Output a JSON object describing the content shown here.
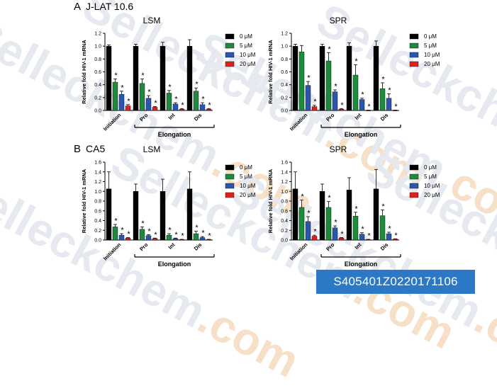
{
  "watermark": {
    "text": "Selleckchem",
    "suffix": ".com"
  },
  "image_id_label": "S405401Z0220171106",
  "panels": [
    {
      "letter": "A",
      "cell_line": "J-LAT 10.6"
    },
    {
      "letter": "B",
      "cell_line": "CA5"
    }
  ],
  "colors": {
    "0 μM": "#000000",
    "5 μM": "#1f8a3e",
    "10 μM": "#2a56b0",
    "20 μM": "#e02020"
  },
  "chart_data": [
    {
      "type": "bar",
      "panel": "A",
      "title": "LSM",
      "ylabel": "Relative fold HIV-1 mRNA",
      "ylim": [
        0,
        1.2
      ],
      "yticks": [
        "0.0",
        "0.2",
        "0.4",
        "0.6",
        "0.8",
        "1.0",
        "1.2"
      ],
      "categories": [
        "Initiation",
        "Pro",
        "Int",
        "Dis"
      ],
      "group_label": "Elongation",
      "legend": [
        "0 μM",
        "5 μM",
        "10 μM",
        "20 μM"
      ],
      "series": [
        {
          "name": "0 μM",
          "values": [
            1.0,
            1.0,
            1.0,
            1.0
          ],
          "errors": [
            0.02,
            0.03,
            0.06,
            0.1
          ],
          "sig": [
            false,
            false,
            false,
            false
          ]
        },
        {
          "name": "5 μM",
          "values": [
            0.44,
            0.42,
            0.27,
            0.3
          ],
          "errors": [
            0.05,
            0.07,
            0.04,
            0.05
          ],
          "sig": [
            true,
            true,
            true,
            true
          ]
        },
        {
          "name": "10 μM",
          "values": [
            0.25,
            0.19,
            0.1,
            0.09
          ],
          "errors": [
            0.05,
            0.04,
            0.02,
            0.03
          ],
          "sig": [
            true,
            true,
            true,
            true
          ]
        },
        {
          "name": "20 μM",
          "values": [
            0.07,
            0.05,
            0.02,
            0.02
          ],
          "errors": [
            0.02,
            0.01,
            0.01,
            0.01
          ],
          "sig": [
            true,
            true,
            true,
            true
          ]
        }
      ]
    },
    {
      "type": "bar",
      "panel": "A",
      "title": "SPR",
      "ylabel": "Relative fold HIV-1 mRNA",
      "ylim": [
        0,
        1.2
      ],
      "yticks": [
        "0.0",
        "0.2",
        "0.4",
        "0.6",
        "0.8",
        "1.0",
        "1.2"
      ],
      "categories": [
        "Initiation",
        "Pro",
        "Int",
        "Dis"
      ],
      "group_label": "Elongation",
      "legend": [
        "0 μM",
        "5 μM",
        "10 μM",
        "20 μM"
      ],
      "series": [
        {
          "name": "0 μM",
          "values": [
            1.0,
            1.0,
            1.0,
            1.0
          ],
          "errors": [
            0.03,
            0.03,
            0.05,
            0.08
          ],
          "sig": [
            false,
            false,
            false,
            false
          ]
        },
        {
          "name": "5 μM",
          "values": [
            0.91,
            0.77,
            0.55,
            0.34
          ],
          "errors": [
            0.1,
            0.13,
            0.16,
            0.09
          ],
          "sig": [
            false,
            true,
            true,
            true
          ]
        },
        {
          "name": "10 μM",
          "values": [
            0.39,
            0.29,
            0.17,
            0.19
          ],
          "errors": [
            0.06,
            0.03,
            0.02,
            0.07
          ],
          "sig": [
            true,
            true,
            true,
            true
          ]
        },
        {
          "name": "20 μM",
          "values": [
            0.06,
            0.02,
            0.0,
            0.0
          ],
          "errors": [
            0.02,
            0.01,
            0.005,
            0.005
          ],
          "sig": [
            true,
            true,
            true,
            true
          ]
        }
      ]
    },
    {
      "type": "bar",
      "panel": "B",
      "title": "LSM",
      "ylabel": "Relative fold HIV-1 mRNA",
      "ylim": [
        0,
        1.6
      ],
      "yticks": [
        "0.0",
        "0.2",
        "0.4",
        "0.6",
        "0.8",
        "1.0",
        "1.2",
        "1.4",
        "1.6"
      ],
      "categories": [
        "Initiation",
        "Pro",
        "Int",
        "Dis"
      ],
      "group_label": "Elongation",
      "legend": [
        "0 μM",
        "5 μM",
        "10 μM",
        "20 μM"
      ],
      "series": [
        {
          "name": "0 μM",
          "values": [
            1.05,
            1.0,
            1.0,
            1.05
          ],
          "errors": [
            0.35,
            0.15,
            0.25,
            0.35
          ],
          "sig": [
            false,
            false,
            false,
            false
          ]
        },
        {
          "name": "5 μM",
          "values": [
            0.27,
            0.22,
            0.1,
            0.13
          ],
          "errors": [
            0.05,
            0.05,
            0.03,
            0.05
          ],
          "sig": [
            true,
            true,
            true,
            true
          ]
        },
        {
          "name": "10 μM",
          "values": [
            0.1,
            0.09,
            0.03,
            0.05
          ],
          "errors": [
            0.03,
            0.02,
            0.01,
            0.02
          ],
          "sig": [
            true,
            true,
            true,
            true
          ]
        },
        {
          "name": "20 μM",
          "values": [
            0.04,
            0.03,
            0.01,
            0.01
          ],
          "errors": [
            0.01,
            0.01,
            0.005,
            0.005
          ],
          "sig": [
            true,
            true,
            true,
            true
          ]
        }
      ]
    },
    {
      "type": "bar",
      "panel": "B",
      "title": "SPR",
      "ylabel": "Relative fold HIV-1 mRNA",
      "ylim": [
        0,
        1.6
      ],
      "yticks": [
        "0.0",
        "0.2",
        "0.4",
        "0.6",
        "0.8",
        "1.0",
        "1.2",
        "1.4",
        "1.6"
      ],
      "categories": [
        "Initiation",
        "Pro",
        "Int",
        "Dis"
      ],
      "group_label": "Elongation",
      "legend": [
        "0 μM",
        "5 μM",
        "10 μM",
        "20 μM"
      ],
      "series": [
        {
          "name": "0 μM",
          "values": [
            1.05,
            1.0,
            1.03,
            1.05
          ],
          "errors": [
            0.35,
            0.15,
            0.25,
            0.4
          ],
          "sig": [
            false,
            false,
            false,
            false
          ]
        },
        {
          "name": "5 μM",
          "values": [
            0.67,
            0.67,
            0.49,
            0.5
          ],
          "errors": [
            0.15,
            0.12,
            0.08,
            0.12
          ],
          "sig": [
            true,
            true,
            true,
            true
          ]
        },
        {
          "name": "10 μM",
          "values": [
            0.38,
            0.25,
            0.12,
            0.13
          ],
          "errors": [
            0.1,
            0.04,
            0.03,
            0.03
          ],
          "sig": [
            true,
            true,
            true,
            true
          ]
        },
        {
          "name": "20 μM",
          "values": [
            0.08,
            0.04,
            0.01,
            0.02
          ],
          "errors": [
            0.02,
            0.01,
            0.005,
            0.005
          ],
          "sig": [
            true,
            true,
            true,
            true
          ]
        }
      ]
    }
  ]
}
